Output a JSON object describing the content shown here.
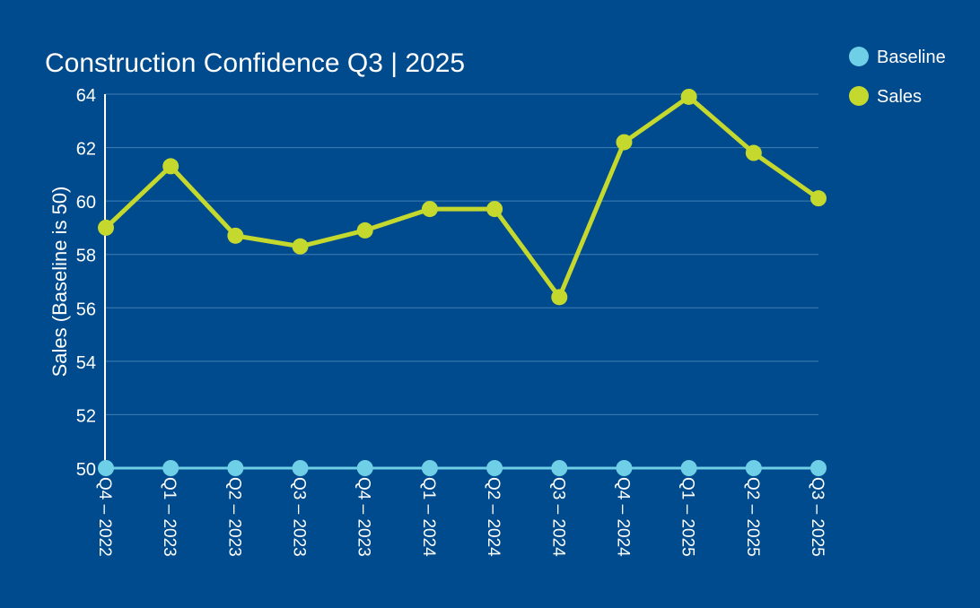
{
  "chart_data": {
    "type": "line",
    "title": "Construction Confidence Q3 | 2025",
    "xlabel": "",
    "ylabel": "Sales (Baseline is 50)",
    "ylim": [
      50,
      64
    ],
    "yticks": [
      50,
      52,
      54,
      56,
      58,
      60,
      62,
      64
    ],
    "grid": true,
    "legend_position": "top-right",
    "categories": [
      "Q4 – 2022",
      "Q1 – 2023",
      "Q2 – 2023",
      "Q3 – 2023",
      "Q4 – 2023",
      "Q1 – 2024",
      "Q2 – 2024",
      "Q3 – 2024",
      "Q4 – 2024",
      "Q1 – 2025",
      "Q2 – 2025",
      "Q3 – 2025"
    ],
    "series": [
      {
        "name": "Baseline",
        "color": "#6ecfe6",
        "values": [
          50,
          50,
          50,
          50,
          50,
          50,
          50,
          50,
          50,
          50,
          50,
          50
        ]
      },
      {
        "name": "Sales",
        "color": "#c4d82e",
        "values": [
          59.0,
          61.3,
          58.7,
          58.3,
          58.9,
          59.7,
          59.7,
          56.4,
          62.2,
          63.9,
          61.8,
          60.1
        ]
      }
    ]
  }
}
